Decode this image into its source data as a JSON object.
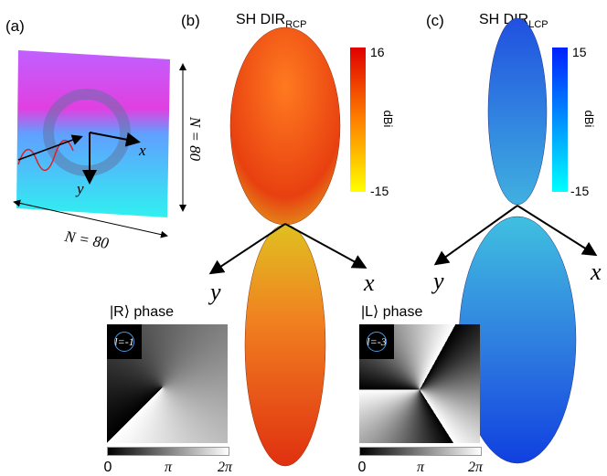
{
  "panel_a": {
    "label": "(a)",
    "axis_x": "x",
    "axis_y": "y",
    "side_label": "N = 80",
    "bottom_label": "N = 80"
  },
  "panel_b": {
    "label": "(b)",
    "title": "SH DIR",
    "title_sub": "RCP",
    "colorbar": {
      "max": "16",
      "min": "-15",
      "unit": "dBi"
    },
    "axis_x": "x",
    "axis_y": "y",
    "inset": {
      "title": "|R⟩ phase",
      "charge": "l=-1",
      "ticks": [
        "0",
        "π",
        "2π"
      ]
    }
  },
  "panel_c": {
    "label": "(c)",
    "title": "SH DIR",
    "title_sub": "LCP",
    "colorbar": {
      "max": "15",
      "min": "-15",
      "unit": "dBi"
    },
    "axis_x": "x",
    "axis_y": "y",
    "inset": {
      "title": "|L⟩ phase",
      "charge": "l=-3",
      "ticks": [
        "0",
        "π",
        "2π"
      ]
    }
  }
}
